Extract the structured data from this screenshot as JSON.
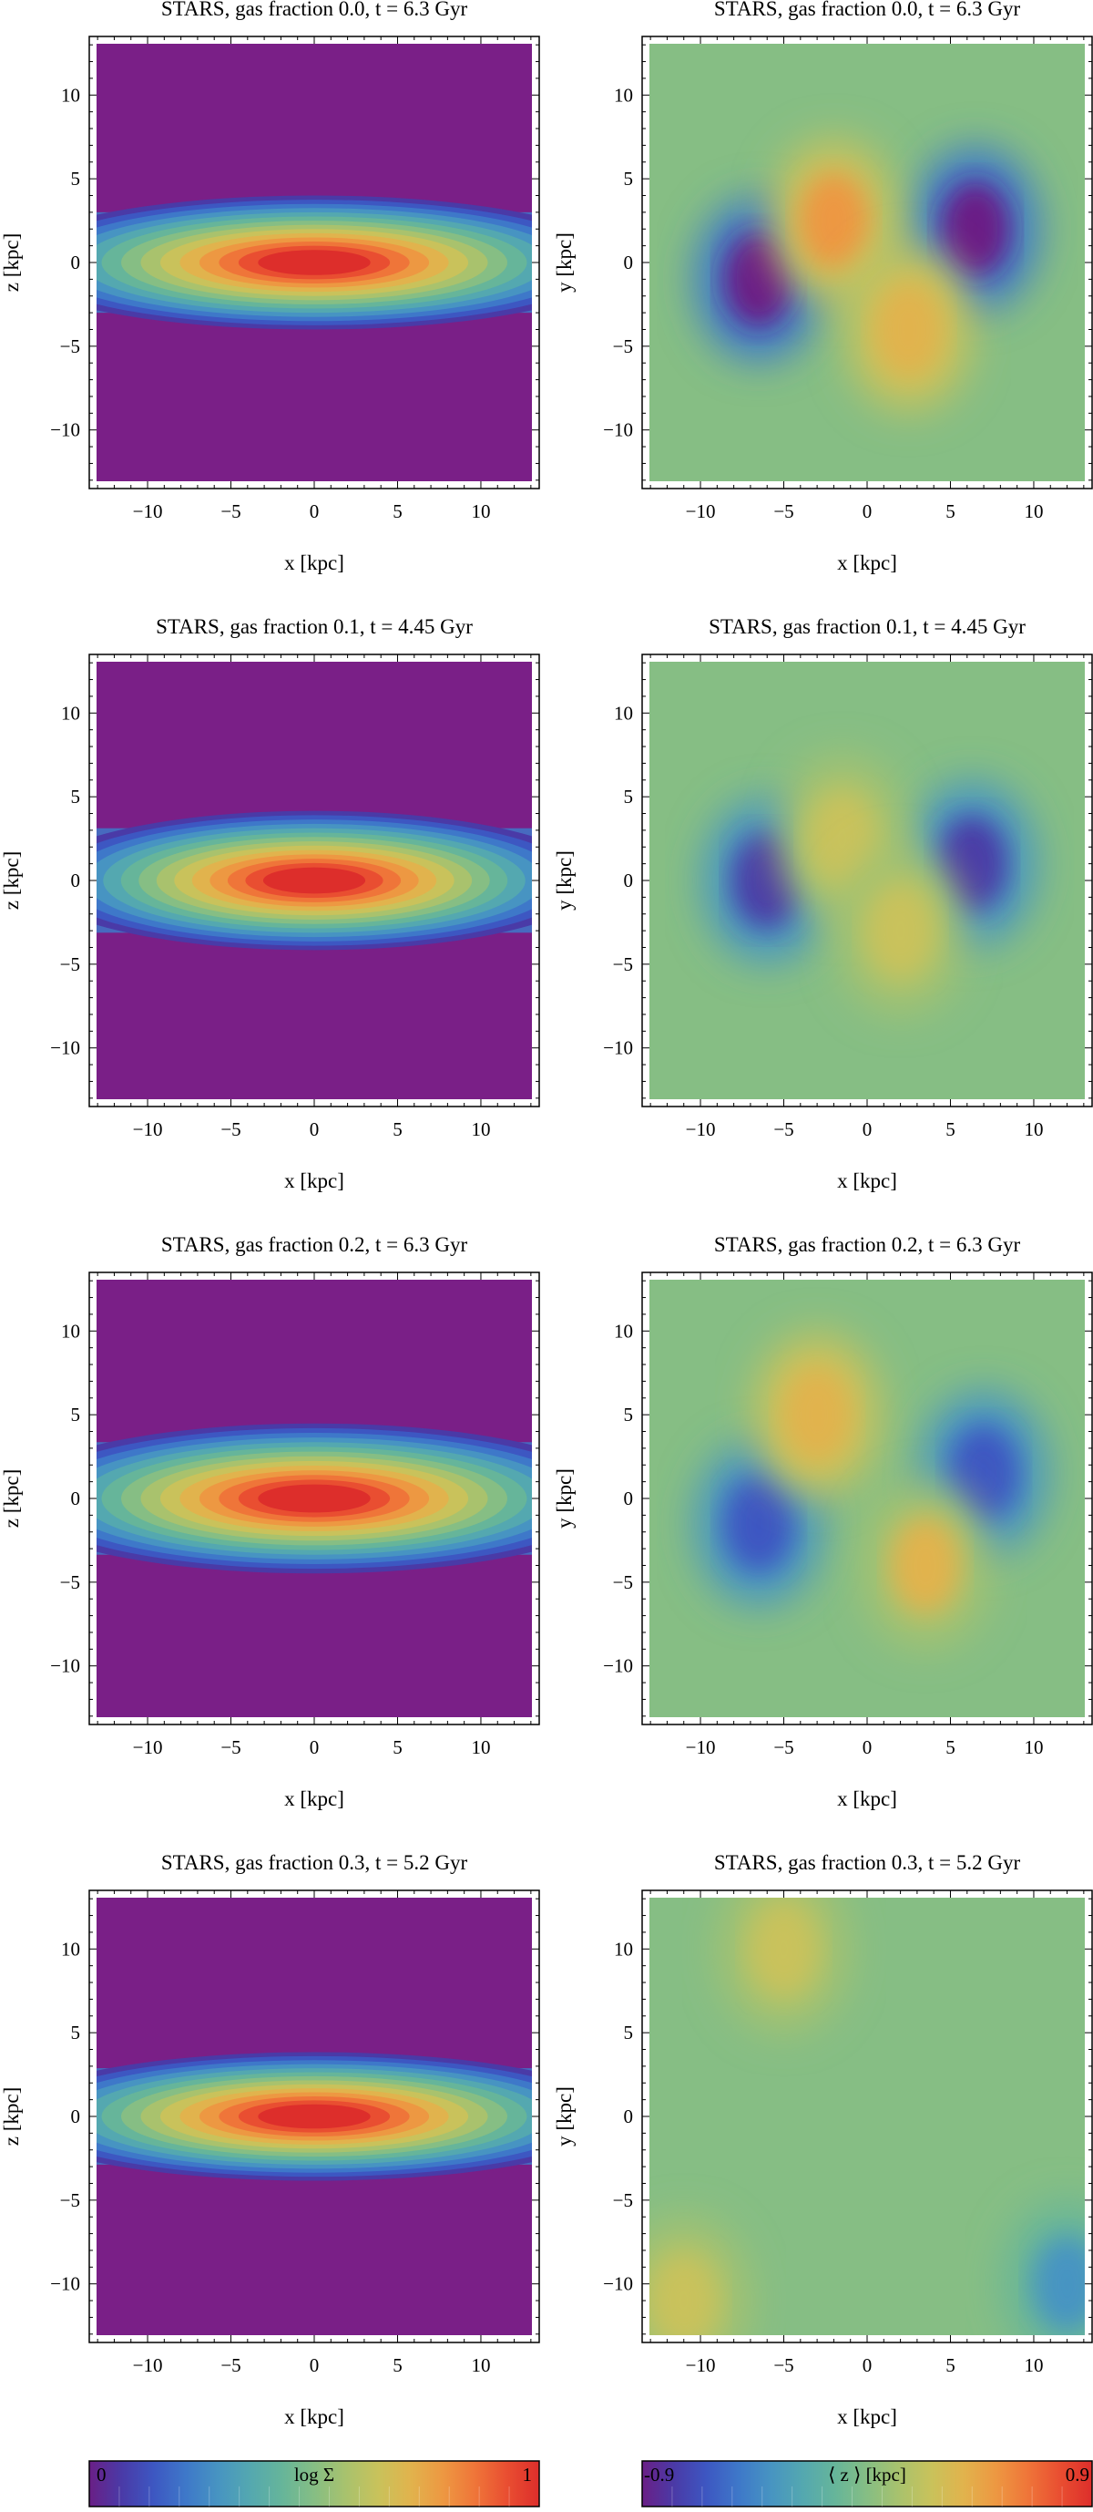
{
  "figure": {
    "titles": [
      [
        "STARS, gas fraction 0.0, t = 6.3 Gyr",
        "STARS, gas fraction 0.0, t = 6.3 Gyr"
      ],
      [
        "STARS, gas fraction 0.1, t = 4.45 Gyr",
        "STARS, gas fraction 0.1, t = 4.45 Gyr"
      ],
      [
        "STARS, gas fraction 0.2, t = 6.3 Gyr",
        "STARS, gas fraction 0.2, t = 6.3 Gyr"
      ],
      [
        "STARS, gas fraction 0.3, t = 5.2 Gyr",
        "STARS, gas fraction 0.3, t = 5.2 Gyr"
      ]
    ],
    "xlabel": "x [kpc]",
    "ylabel_left": "z [kpc]",
    "ylabel_right": "y [kpc]",
    "colorbar_left": {
      "label": "log Σ",
      "min_label": "0",
      "max_label": "1",
      "min": 0,
      "max": 1
    },
    "colorbar_right": {
      "label": "⟨ z ⟩ [kpc]",
      "min_label": "-0.9",
      "max_label": "0.9",
      "min": -0.9,
      "max": 0.9
    }
  },
  "chart_data": [
    {
      "type": "heatmap",
      "title": "STARS, gas fraction 0.0, t = 6.3 Gyr",
      "quantity": "log Σ",
      "xlabel": "x [kpc]",
      "ylabel": "z [kpc]",
      "xlim": [
        -13.5,
        13.5
      ],
      "ylim": [
        -13.5,
        13.5
      ],
      "xticks": [
        -10,
        -5,
        0,
        5,
        10
      ],
      "yticks": [
        -10,
        -5,
        0,
        5,
        10
      ],
      "colorbar": [
        0,
        1
      ],
      "disk_scale_height_kpc": 2.5,
      "disk_scale_length_kpc": 11
    },
    {
      "type": "heatmap",
      "title": "STARS, gas fraction 0.0, t = 6.3 Gyr",
      "quantity": "⟨ z ⟩ [kpc]",
      "xlabel": "x [kpc]",
      "ylabel": "y [kpc]",
      "xlim": [
        -13.5,
        13.5
      ],
      "ylim": [
        -13.5,
        13.5
      ],
      "xticks": [
        -10,
        -5,
        0,
        5,
        10
      ],
      "yticks": [
        -10,
        -5,
        0,
        5,
        10
      ],
      "colorbar": [
        -0.9,
        0.9
      ],
      "features": [
        {
          "x": -6.5,
          "y": -1,
          "value": -0.85
        },
        {
          "x": 6.5,
          "y": 2,
          "value": -0.85
        },
        {
          "x": -2,
          "y": 2.5,
          "value": 0.45
        },
        {
          "x": 2.5,
          "y": -4,
          "value": 0.4
        }
      ]
    },
    {
      "type": "heatmap",
      "title": "STARS, gas fraction 0.1, t = 4.45 Gyr",
      "quantity": "log Σ",
      "xlabel": "x [kpc]",
      "ylabel": "z [kpc]",
      "xlim": [
        -13.5,
        13.5
      ],
      "ylim": [
        -13.5,
        13.5
      ],
      "xticks": [
        -10,
        -5,
        0,
        5,
        10
      ],
      "yticks": [
        -10,
        -5,
        0,
        5,
        10
      ],
      "colorbar": [
        0,
        1
      ],
      "disk_scale_height_kpc": 2.6,
      "disk_scale_length_kpc": 10
    },
    {
      "type": "heatmap",
      "title": "STARS, gas fraction 0.1, t = 4.45 Gyr",
      "quantity": "⟨ z ⟩ [kpc]",
      "xlabel": "x [kpc]",
      "ylabel": "y [kpc]",
      "xlim": [
        -13.5,
        13.5
      ],
      "ylim": [
        -13.5,
        13.5
      ],
      "xticks": [
        -10,
        -5,
        0,
        5,
        10
      ],
      "yticks": [
        -10,
        -5,
        0,
        5,
        10
      ],
      "colorbar": [
        -0.9,
        0.9
      ],
      "features": [
        {
          "x": -6,
          "y": 0,
          "value": -0.8
        },
        {
          "x": 6.3,
          "y": 1,
          "value": -0.75
        },
        {
          "x": -1.5,
          "y": 2.5,
          "value": 0.3
        },
        {
          "x": 2,
          "y": -3,
          "value": 0.3
        }
      ]
    },
    {
      "type": "heatmap",
      "title": "STARS, gas fraction 0.2, t = 6.3 Gyr",
      "quantity": "log Σ",
      "xlabel": "x [kpc]",
      "ylabel": "z [kpc]",
      "xlim": [
        -13.5,
        13.5
      ],
      "ylim": [
        -13.5,
        13.5
      ],
      "xticks": [
        -10,
        -5,
        0,
        5,
        10
      ],
      "yticks": [
        -10,
        -5,
        0,
        5,
        10
      ],
      "colorbar": [
        0,
        1
      ],
      "disk_scale_height_kpc": 2.8,
      "disk_scale_length_kpc": 11
    },
    {
      "type": "heatmap",
      "title": "STARS, gas fraction 0.2, t = 6.3 Gyr",
      "quantity": "⟨ z ⟩ [kpc]",
      "xlabel": "x [kpc]",
      "ylabel": "y [kpc]",
      "xlim": [
        -13.5,
        13.5
      ],
      "ylim": [
        -13.5,
        13.5
      ],
      "xticks": [
        -10,
        -5,
        0,
        5,
        10
      ],
      "yticks": [
        -10,
        -5,
        0,
        5,
        10
      ],
      "colorbar": [
        -0.9,
        0.9
      ],
      "features": [
        {
          "x": -6.5,
          "y": -1.5,
          "value": -0.6
        },
        {
          "x": 7,
          "y": 1.5,
          "value": -0.65
        },
        {
          "x": -3,
          "y": 5,
          "value": 0.4
        },
        {
          "x": 3.5,
          "y": -4,
          "value": 0.35
        }
      ]
    },
    {
      "type": "heatmap",
      "title": "STARS, gas fraction 0.3, t = 5.2 Gyr",
      "quantity": "log Σ",
      "xlabel": "x [kpc]",
      "ylabel": "z [kpc]",
      "xlim": [
        -13.5,
        13.5
      ],
      "ylim": [
        -13.5,
        13.5
      ],
      "xticks": [
        -10,
        -5,
        0,
        5,
        10
      ],
      "yticks": [
        -10,
        -5,
        0,
        5,
        10
      ],
      "colorbar": [
        0,
        1
      ],
      "disk_scale_height_kpc": 2.4,
      "disk_scale_length_kpc": 11
    },
    {
      "type": "heatmap",
      "title": "STARS, gas fraction 0.3, t = 5.2 Gyr",
      "quantity": "⟨ z ⟩ [kpc]",
      "xlabel": "x [kpc]",
      "ylabel": "y [kpc]",
      "xlim": [
        -13.5,
        13.5
      ],
      "ylim": [
        -13.5,
        13.5
      ],
      "xticks": [
        -10,
        -5,
        0,
        5,
        10
      ],
      "yticks": [
        -10,
        -5,
        0,
        5,
        10
      ],
      "colorbar": [
        -0.9,
        0.9
      ],
      "features": [
        {
          "x": -5,
          "y": 10,
          "value": 0.2
        },
        {
          "x": 12,
          "y": -10,
          "value": -0.35
        },
        {
          "x": -11,
          "y": -11,
          "value": 0.2
        }
      ]
    }
  ],
  "colors": {
    "colormap": [
      "#6a1f86",
      "#4a3aa7",
      "#3d57c2",
      "#3e78c9",
      "#4794c2",
      "#54a8b0",
      "#66b59a",
      "#86be84",
      "#a9c26d",
      "#c9c25b",
      "#e1b34d",
      "#ed9842",
      "#ef7539",
      "#e94e31",
      "#dd2e2b"
    ],
    "background_left": "#7a1f87"
  }
}
